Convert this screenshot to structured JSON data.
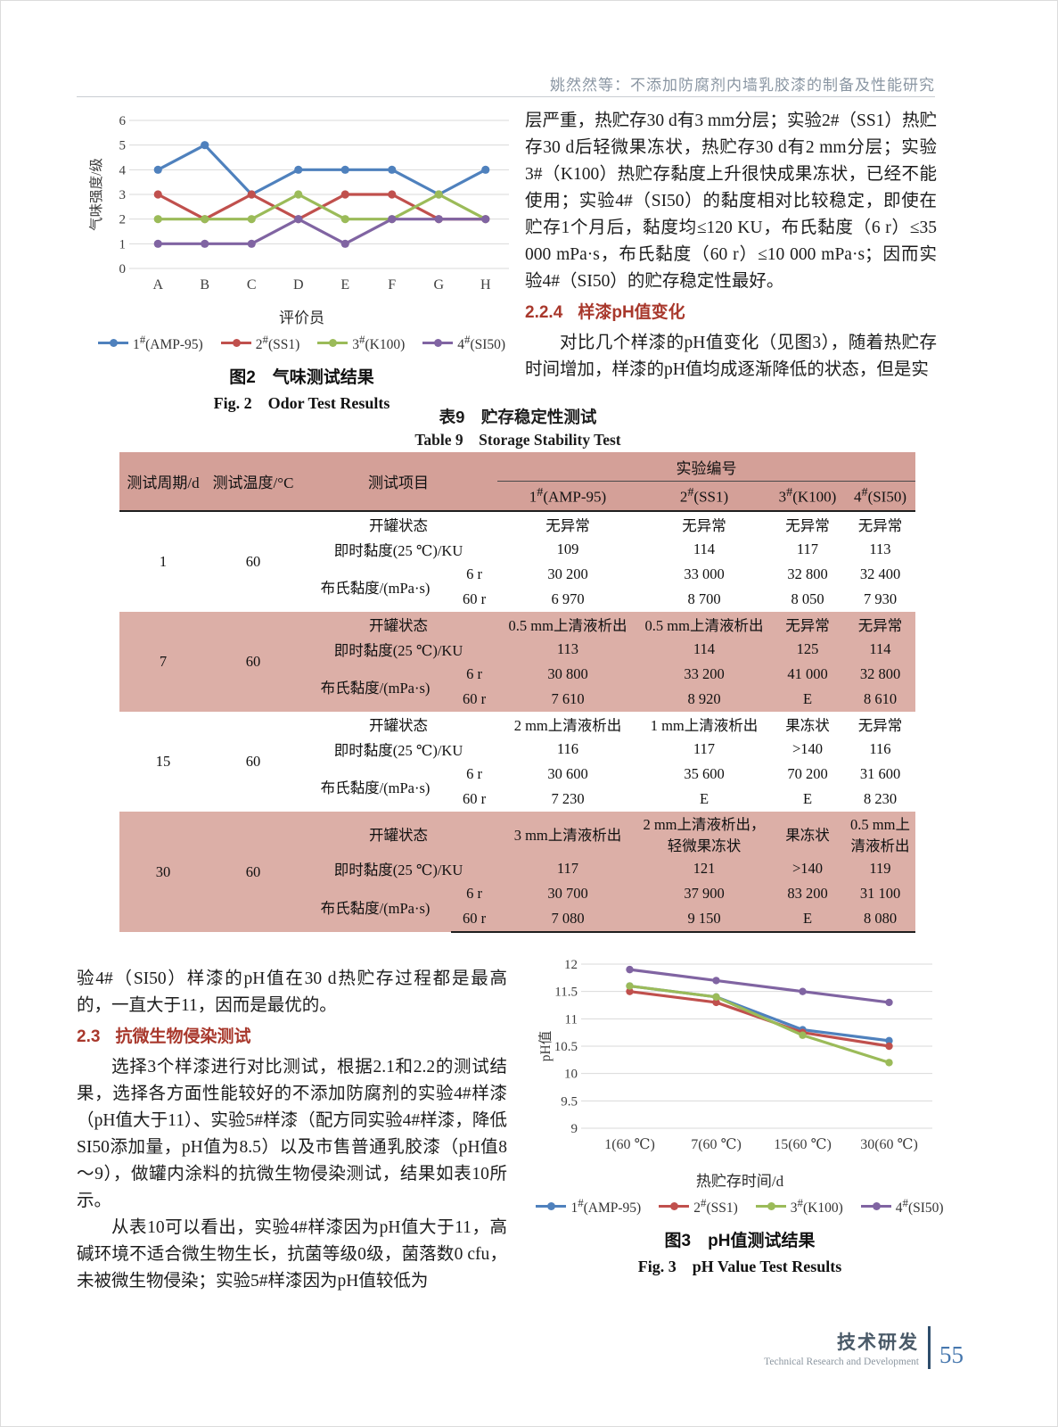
{
  "page": {
    "header": "姚然然等：不添加防腐剂内墙乳胶漆的制备及性能研究",
    "footer": {
      "section_cn": "技术研发",
      "section_en": "Technical Research and Development",
      "page_number": "55"
    }
  },
  "colors": {
    "series_blue": "#4F81BD",
    "series_red": "#C0504D",
    "series_green": "#9BBB59",
    "series_purple": "#8064A2",
    "table_header_pink": "#D4A098",
    "table_row_pink": "#DCAFA7",
    "heading_red": "#A8382C",
    "grid_gray": "#D9D9D9"
  },
  "chart_data": [
    {
      "id": "fig2-odor",
      "type": "line",
      "title": "图2　气味测试结果",
      "categories": [
        "A",
        "B",
        "C",
        "D",
        "E",
        "F",
        "G",
        "H"
      ],
      "xlabel": "评价员",
      "ylabel": "气味强度/级",
      "ylim": [
        0,
        6
      ],
      "ytick_step": 1,
      "grid": true,
      "legend_position": "bottom",
      "series": [
        {
          "name": "1#(AMP-95)",
          "color": "#4F81BD",
          "values": [
            4,
            5,
            3,
            4,
            4,
            4,
            3,
            4
          ]
        },
        {
          "name": "2#(SS1)",
          "color": "#C0504D",
          "values": [
            3,
            2,
            3,
            2,
            3,
            3,
            2,
            2
          ]
        },
        {
          "name": "3#(K100)",
          "color": "#9BBB59",
          "values": [
            2,
            2,
            2,
            3,
            2,
            2,
            3,
            2
          ]
        },
        {
          "name": "4#(SI50)",
          "color": "#8064A2",
          "values": [
            1,
            1,
            1,
            2,
            1,
            2,
            2,
            2
          ]
        }
      ]
    },
    {
      "id": "fig3-ph",
      "type": "line",
      "title": "图3　pH值测试结果",
      "categories": [
        "1(60 ℃)",
        "7(60 ℃)",
        "15(60 ℃)",
        "30(60 ℃)"
      ],
      "xlabel": "热贮存时间/d",
      "ylabel": "pH值",
      "ylim": [
        9,
        12
      ],
      "ytick_step": 0.5,
      "grid": true,
      "legend_position": "bottom",
      "series": [
        {
          "name": "1#(AMP-95)",
          "color": "#4F81BD",
          "values": [
            11.6,
            11.4,
            10.8,
            10.6
          ]
        },
        {
          "name": "2#(SS1)",
          "color": "#C0504D",
          "values": [
            11.5,
            11.3,
            10.75,
            10.5
          ]
        },
        {
          "name": "3#(K100)",
          "color": "#9BBB59",
          "values": [
            11.6,
            11.4,
            10.7,
            10.2
          ]
        },
        {
          "name": "4#(SI50)",
          "color": "#8064A2",
          "values": [
            11.9,
            11.7,
            11.5,
            11.3
          ]
        }
      ]
    }
  ],
  "figure2": {
    "caption_cn": "图2　气味测试结果",
    "caption_en": "Fig. 2　Odor Test Results"
  },
  "figure3": {
    "caption_cn": "图3　pH值测试结果",
    "caption_en": "Fig. 3　pH Value Test Results"
  },
  "right_col": {
    "para1": "层严重，热贮存30 d有3 mm分层；实验2#（SS1）热贮存30 d后轻微果冻状，热贮存30 d有2 mm分层；实验3#（K100）热贮存黏度上升很快成果冻状，已经不能使用；实验4#（SI50）的黏度相对比较稳定，即使在贮存1个月后，黏度均≤120 KU，布氏黏度（6 r）≤35 000 mPa·s，布氏黏度（60 r）≤10 000 mPa·s；因而实验4#（SI50）的贮存稳定性最好。",
    "section_224_num": "2.2.4",
    "section_224_title": "样漆pH值变化",
    "para2": "对比几个样漆的pH值变化（见图3），随着热贮存时间增加，样漆的pH值均成逐渐降低的状态，但是实"
  },
  "table9": {
    "title_cn": "表9　贮存稳定性测试",
    "title_en": "Table 9　Storage Stability Test",
    "headers": {
      "period": "测试周期/d",
      "temp": "测试温度/°C",
      "item": "测试项目",
      "group": "实验编号",
      "experiments": [
        "1#(AMP-95)",
        "2#(SS1)",
        "3#(K100)",
        "4#(SI50)"
      ]
    },
    "row_labels": {
      "open_state": "开罐状态",
      "instant_viscosity": "即时黏度(25 ℃)/KU",
      "brookfield": "布氏黏度/(mPa·s)",
      "speed_6r": "6 r",
      "speed_60r": "60 r"
    },
    "blocks": [
      {
        "period": "1",
        "temp": "60",
        "shaded": false,
        "open": [
          "无异常",
          "无异常",
          "无异常",
          "无异常"
        ],
        "ku": [
          "109",
          "114",
          "117",
          "113"
        ],
        "r6": [
          "30 200",
          "33 000",
          "32 800",
          "32 400"
        ],
        "r60": [
          "6 970",
          "8 700",
          "8 050",
          "7 930"
        ]
      },
      {
        "period": "7",
        "temp": "60",
        "shaded": true,
        "open": [
          "0.5 mm上清液析出",
          "0.5 mm上清液析出",
          "无异常",
          "无异常"
        ],
        "ku": [
          "113",
          "114",
          "125",
          "114"
        ],
        "r6": [
          "30 800",
          "33 200",
          "41 000",
          "32 800"
        ],
        "r60": [
          "7 610",
          "8 920",
          "E",
          "8 610"
        ]
      },
      {
        "period": "15",
        "temp": "60",
        "shaded": false,
        "open": [
          "2 mm上清液析出",
          "1 mm上清液析出",
          "果冻状",
          "无异常"
        ],
        "ku": [
          "116",
          "117",
          ">140",
          "116"
        ],
        "r6": [
          "30 600",
          "35 600",
          "70 200",
          "31 600"
        ],
        "r60": [
          "7 230",
          "E",
          "E",
          "8 230"
        ]
      },
      {
        "period": "30",
        "temp": "60",
        "shaded": true,
        "open": [
          "3 mm上清液析出",
          "2 mm上清液析出，轻微果冻状",
          "果冻状",
          "0.5 mm上清液析出"
        ],
        "ku": [
          "117",
          "121",
          ">140",
          "119"
        ],
        "r6": [
          "30 700",
          "37 900",
          "83 200",
          "31 100"
        ],
        "r60": [
          "7 080",
          "9 150",
          "E",
          "8 080"
        ]
      }
    ]
  },
  "left_col": {
    "para1": "验4#（SI50）样漆的pH值在30 d热贮存过程都是最高的，一直大于11，因而是最优的。",
    "section_23_num": "2.3",
    "section_23_title": "抗微生物侵染测试",
    "para2": "选择3个样漆进行对比测试，根据2.1和2.2的测试结果，选择各方面性能较好的不添加防腐剂的实验4#样漆（pH值大于11）、实验5#样漆（配方同实验4#样漆，降低SI50添加量，pH值为8.5）以及市售普通乳胶漆（pH值8～9），做罐内涂料的抗微生物侵染测试，结果如表10所示。",
    "para3": "从表10可以看出，实验4#样漆因为pH值大于11，高碱环境不适合微生物生长，抗菌等级0级，菌落数0 cfu，未被微生物侵染；实验5#样漆因为pH值较低为"
  }
}
